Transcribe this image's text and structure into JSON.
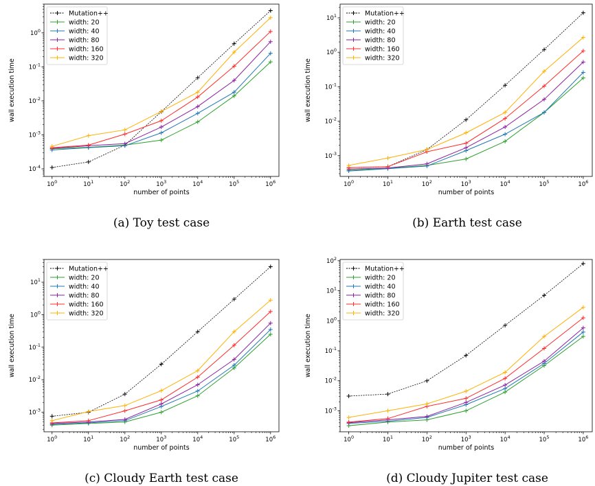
{
  "chart_data": [
    {
      "type": "line",
      "caption": "(a) Toy test case",
      "xlabel": "number of points",
      "ylabel": "wall execution time",
      "xscale": "log",
      "yscale": "log",
      "xlim": [
        0.6,
        1700000.0
      ],
      "ylim": [
        6e-05,
        7
      ],
      "legend": "top-left",
      "grid": false,
      "x": [
        1,
        10,
        100,
        1000,
        10000,
        100000,
        1000000
      ],
      "x_ticks": [
        1,
        10,
        100,
        1000,
        10000,
        100000,
        1000000
      ],
      "y_ticks": [
        0.0001,
        0.001,
        0.01,
        0.1,
        1
      ],
      "series": [
        {
          "name": "Mutation++",
          "color": "#000000",
          "dash": "2,1.5",
          "values": [
            0.00011,
            0.00016,
            0.0005,
            0.0048,
            0.048,
            0.48,
            4.5
          ]
        },
        {
          "name": "width: 20",
          "color": "#2ca02c",
          "dash": "",
          "values": [
            0.00039,
            0.00043,
            0.0005,
            0.0007,
            0.0024,
            0.014,
            0.14
          ]
        },
        {
          "name": "width: 40",
          "color": "#1f77b4",
          "dash": "",
          "values": [
            0.00036,
            0.00042,
            0.00048,
            0.00115,
            0.0043,
            0.018,
            0.25
          ]
        },
        {
          "name": "width: 80",
          "color": "#8a1fa0",
          "dash": "",
          "values": [
            0.0004,
            0.00048,
            0.00055,
            0.0017,
            0.0068,
            0.04,
            0.55
          ]
        },
        {
          "name": "width: 160",
          "color": "#ff2a2a",
          "dash": "",
          "values": [
            0.00042,
            0.0005,
            0.00105,
            0.0026,
            0.013,
            0.105,
            1.1
          ]
        },
        {
          "name": "width: 320",
          "color": "#ffb000",
          "dash": "",
          "values": [
            0.00046,
            0.00095,
            0.0014,
            0.0049,
            0.018,
            0.27,
            2.8
          ]
        }
      ]
    },
    {
      "type": "line",
      "caption": "(b) Earth test case",
      "xlabel": "number of points",
      "ylabel": "wall execution time",
      "xscale": "log",
      "yscale": "log",
      "xlim": [
        0.6,
        1700000.0
      ],
      "ylim": [
        0.00025,
        25
      ],
      "legend": "top-left",
      "grid": false,
      "x": [
        1,
        10,
        100,
        1000,
        10000,
        100000,
        1000000
      ],
      "x_ticks": [
        1,
        10,
        100,
        1000,
        10000,
        100000,
        1000000
      ],
      "y_ticks": [
        0.001,
        0.01,
        0.1,
        1,
        10
      ],
      "series": [
        {
          "name": "Mutation++",
          "color": "#000000",
          "dash": "2,1.5",
          "values": [
            0.00045,
            0.00048,
            0.0015,
            0.011,
            0.11,
            1.2,
            14
          ]
        },
        {
          "name": "width: 20",
          "color": "#2ca02c",
          "dash": "",
          "values": [
            0.00038,
            0.00043,
            0.00052,
            0.0008,
            0.0026,
            0.018,
            0.18
          ]
        },
        {
          "name": "width: 40",
          "color": "#1f77b4",
          "dash": "",
          "values": [
            0.00036,
            0.00042,
            0.0005,
            0.0014,
            0.0042,
            0.018,
            0.26
          ]
        },
        {
          "name": "width: 80",
          "color": "#8a1fa0",
          "dash": "",
          "values": [
            0.00041,
            0.00044,
            0.00058,
            0.0017,
            0.0068,
            0.043,
            0.52
          ]
        },
        {
          "name": "width: 160",
          "color": "#ff2a2a",
          "dash": "",
          "values": [
            0.00045,
            0.00048,
            0.0013,
            0.0023,
            0.012,
            0.105,
            1.1
          ]
        },
        {
          "name": "width: 320",
          "color": "#ffb000",
          "dash": "",
          "values": [
            0.00052,
            0.00085,
            0.0015,
            0.0046,
            0.018,
            0.28,
            2.7
          ]
        }
      ]
    },
    {
      "type": "line",
      "caption": "(c) Cloudy Earth test case",
      "xlabel": "number of points",
      "ylabel": "wall execution time",
      "xscale": "log",
      "yscale": "log",
      "xlim": [
        0.6,
        1700000.0
      ],
      "ylim": [
        0.00025,
        50
      ],
      "legend": "top-left",
      "grid": false,
      "x": [
        1,
        10,
        100,
        1000,
        10000,
        100000,
        1000000
      ],
      "x_ticks": [
        1,
        10,
        100,
        1000,
        10000,
        100000,
        1000000
      ],
      "y_ticks": [
        0.001,
        0.01,
        0.1,
        1,
        10
      ],
      "series": [
        {
          "name": "Mutation++",
          "color": "#000000",
          "dash": "2,1.5",
          "values": [
            0.00075,
            0.001,
            0.0036,
            0.03,
            0.3,
            3,
            30
          ]
        },
        {
          "name": "width: 20",
          "color": "#2ca02c",
          "dash": "",
          "values": [
            0.0004,
            0.00045,
            0.0005,
            0.001,
            0.0032,
            0.023,
            0.25
          ]
        },
        {
          "name": "width: 40",
          "color": "#1f77b4",
          "dash": "",
          "values": [
            0.00042,
            0.00047,
            0.00055,
            0.0015,
            0.0045,
            0.028,
            0.35
          ]
        },
        {
          "name": "width: 80",
          "color": "#8a1fa0",
          "dash": "",
          "values": [
            0.00045,
            0.0005,
            0.0006,
            0.0018,
            0.007,
            0.042,
            0.55
          ]
        },
        {
          "name": "width: 160",
          "color": "#ff2a2a",
          "dash": "",
          "values": [
            0.00047,
            0.00055,
            0.0011,
            0.0024,
            0.012,
            0.115,
            1.25
          ]
        },
        {
          "name": "width: 320",
          "color": "#ffb000",
          "dash": "",
          "values": [
            0.00055,
            0.00105,
            0.0016,
            0.0046,
            0.019,
            0.3,
            2.8
          ]
        }
      ]
    },
    {
      "type": "line",
      "caption": "(d) Cloudy Jupiter test case",
      "xlabel": "number of points",
      "ylabel": "wall execution time",
      "xscale": "log",
      "yscale": "log",
      "xlim": [
        0.6,
        1700000.0
      ],
      "ylim": [
        0.0002,
        110
      ],
      "legend": "top-left",
      "grid": false,
      "x": [
        1,
        10,
        100,
        1000,
        10000,
        100000,
        1000000
      ],
      "x_ticks": [
        1,
        10,
        100,
        1000,
        10000,
        100000,
        1000000
      ],
      "y_ticks": [
        0.001,
        0.01,
        0.1,
        1,
        10,
        100
      ],
      "series": [
        {
          "name": "Mutation++",
          "color": "#000000",
          "dash": "2,1.5",
          "values": [
            0.0031,
            0.0036,
            0.01,
            0.07,
            0.7,
            7,
            80
          ]
        },
        {
          "name": "width: 20",
          "color": "#2ca02c",
          "dash": "",
          "values": [
            0.00032,
            0.00042,
            0.0005,
            0.001,
            0.0042,
            0.032,
            0.3
          ]
        },
        {
          "name": "width: 40",
          "color": "#1f77b4",
          "dash": "",
          "values": [
            0.00038,
            0.00045,
            0.0006,
            0.0016,
            0.0055,
            0.038,
            0.42
          ]
        },
        {
          "name": "width: 80",
          "color": "#8a1fa0",
          "dash": "",
          "values": [
            0.0004,
            0.0005,
            0.00065,
            0.0019,
            0.0072,
            0.045,
            0.58
          ]
        },
        {
          "name": "width: 160",
          "color": "#ff2a2a",
          "dash": "",
          "values": [
            0.00042,
            0.00055,
            0.0014,
            0.0026,
            0.012,
            0.12,
            1.25
          ]
        },
        {
          "name": "width: 320",
          "color": "#ffb000",
          "dash": "",
          "values": [
            0.0006,
            0.001,
            0.0017,
            0.0045,
            0.019,
            0.3,
            2.8
          ]
        }
      ]
    }
  ]
}
